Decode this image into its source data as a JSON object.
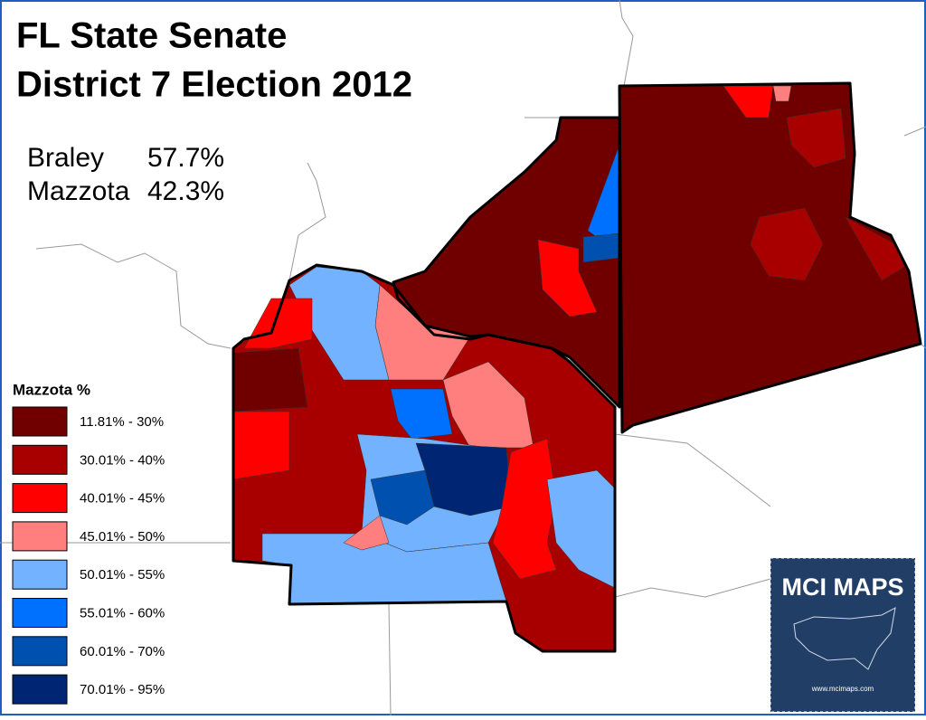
{
  "header": {
    "title_lines": [
      "FL State Senate",
      "District 7 Election 2012"
    ]
  },
  "results": [
    {
      "name": "Braley",
      "share": "57.7%"
    },
    {
      "name": "Mazzota",
      "share": "42.3%"
    }
  ],
  "legend": {
    "title": "Mazzota %",
    "items": [
      {
        "label": "11.81% - 30%",
        "color": "#700000"
      },
      {
        "label": "30.01% - 40%",
        "color": "#a80000"
      },
      {
        "label": "40.01% - 45%",
        "color": "#ff0000"
      },
      {
        "label": "45.01% - 50%",
        "color": "#ff7f7f"
      },
      {
        "label": "50.01% - 55%",
        "color": "#73b2ff"
      },
      {
        "label": "55.01% - 60%",
        "color": "#0070ff"
      },
      {
        "label": "60.01% - 70%",
        "color": "#0050b0"
      },
      {
        "label": "70.01% - 95%",
        "color": "#002673"
      }
    ]
  },
  "logo": {
    "name": "MCI MAPS",
    "url": "www.mcimaps.com"
  }
}
